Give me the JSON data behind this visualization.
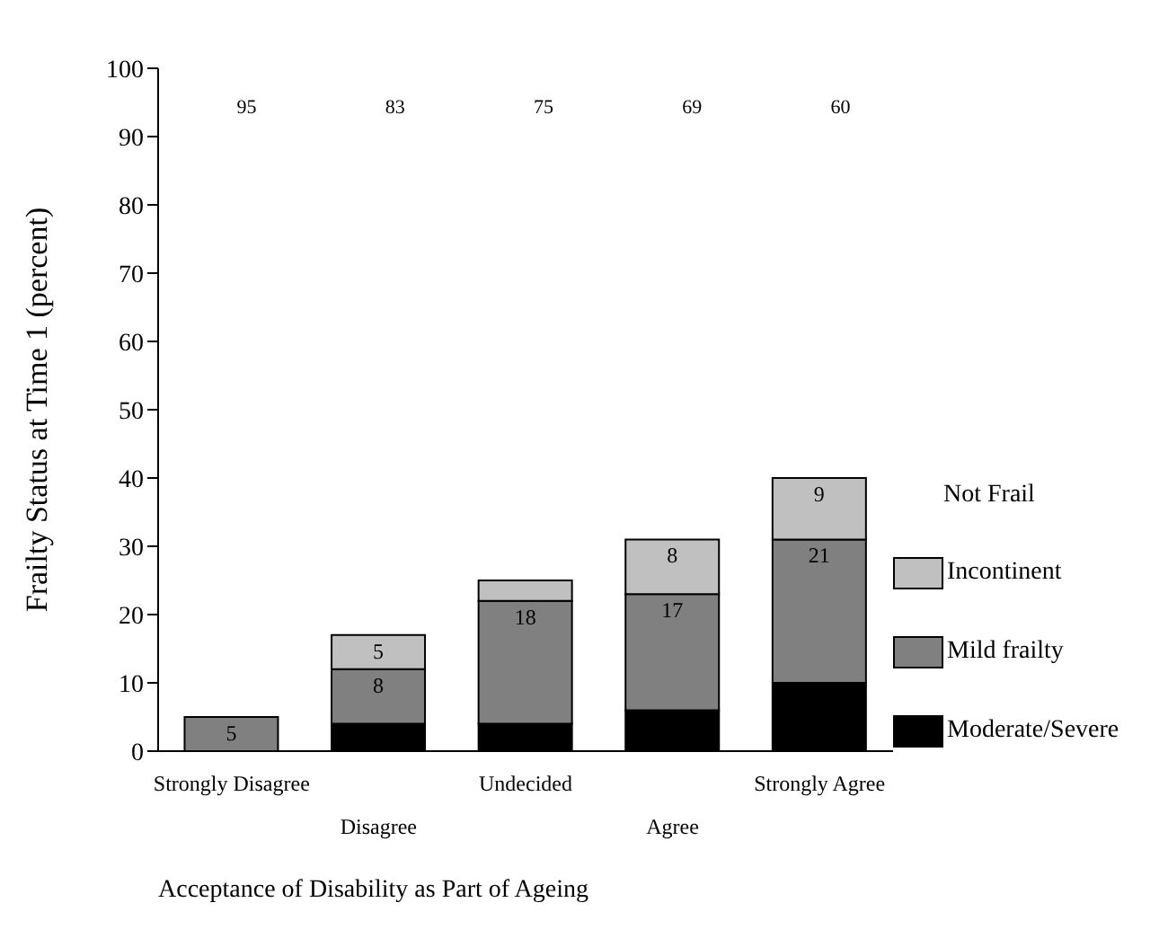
{
  "chart_data": {
    "type": "bar",
    "stacked": true,
    "xlabel": "Acceptance of Disability as Part of Ageing",
    "ylabel": "Frailty Status at Time 1 (percent)",
    "categories": [
      "Strongly Disagree",
      "Disagree",
      "Undecided",
      "Agree",
      "Strongly Agree"
    ],
    "series": [
      {
        "name": "Moderate/Severe",
        "color": "#000000",
        "values": [
          0,
          4,
          4,
          6,
          10
        ],
        "value_labels": [
          null,
          null,
          null,
          null,
          null
        ]
      },
      {
        "name": "Mild frailty",
        "color": "#808080",
        "values": [
          5,
          8,
          18,
          17,
          21
        ],
        "value_labels": [
          "5",
          "8",
          "18",
          "17",
          "21"
        ]
      },
      {
        "name": "Incontinent",
        "color": "#c0c0c0",
        "values": [
          0,
          5,
          3,
          8,
          9
        ],
        "value_labels": [
          null,
          "5",
          null,
          "8",
          "9"
        ]
      }
    ],
    "ylim": [
      0,
      100
    ],
    "yticks": [
      0,
      10,
      20,
      30,
      40,
      50,
      60,
      70,
      80,
      90,
      100
    ],
    "grid": false,
    "legend": "right",
    "annotations": [
      "Not Frail",
      "95",
      "83",
      "75",
      "69",
      "60"
    ]
  }
}
